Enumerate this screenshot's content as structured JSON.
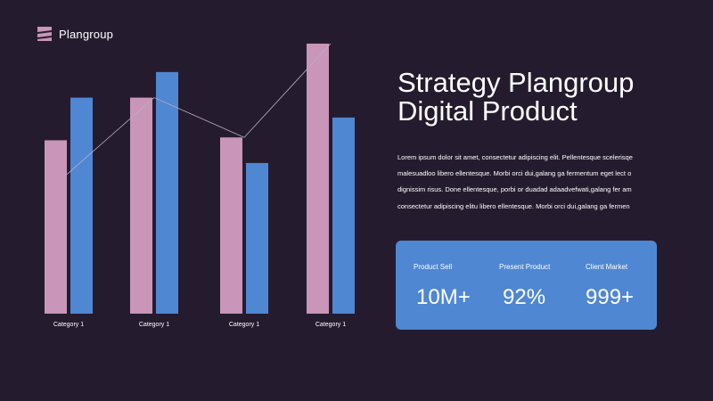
{
  "brand": {
    "name": "Plangroup",
    "accent_color": "#c995b8",
    "logo_icon": "stacked-stripes-logo"
  },
  "title_lines": [
    "Strategy Plangroup",
    "Digital Product"
  ],
  "body_lines": [
    "Lorem ipsum dolor sit amet, consectetur adipiscing elit. Pellentesque scelerisqe",
    "malesuadloo libero ellentesque. Morbi orci dui,galang ga fermentum eget lect o",
    "dignissim risus. Done ellentesque, porbi or duadad adaadvefwati,galang fer am",
    "consectetur adipiscing elitu libero ellentesque. Morbi orci dui,galang ga fermen"
  ],
  "stats": [
    {
      "label": "Product Sell",
      "value": "10M+"
    },
    {
      "label": "Present Product",
      "value": "92%"
    },
    {
      "label": "Client Market",
      "value": "999+"
    }
  ],
  "colors": {
    "background": "#241c2e",
    "card": "#4f87d3"
  },
  "chart_data": {
    "type": "bar",
    "categories": [
      "Category 1",
      "Category 1",
      "Category 1",
      "Category 1"
    ],
    "series": [
      {
        "color": "#c995b8",
        "values": [
          61,
          76,
          62,
          95
        ]
      },
      {
        "color": "#4f87d3",
        "values": [
          76,
          85,
          53,
          69
        ]
      }
    ],
    "trend_line": {
      "color": "#b9b0c4",
      "values": [
        49,
        76,
        62,
        95
      ]
    },
    "ylim": [
      0,
      100
    ],
    "title": "",
    "xlabel": "",
    "ylabel": "",
    "grid": false,
    "legend": "none"
  }
}
